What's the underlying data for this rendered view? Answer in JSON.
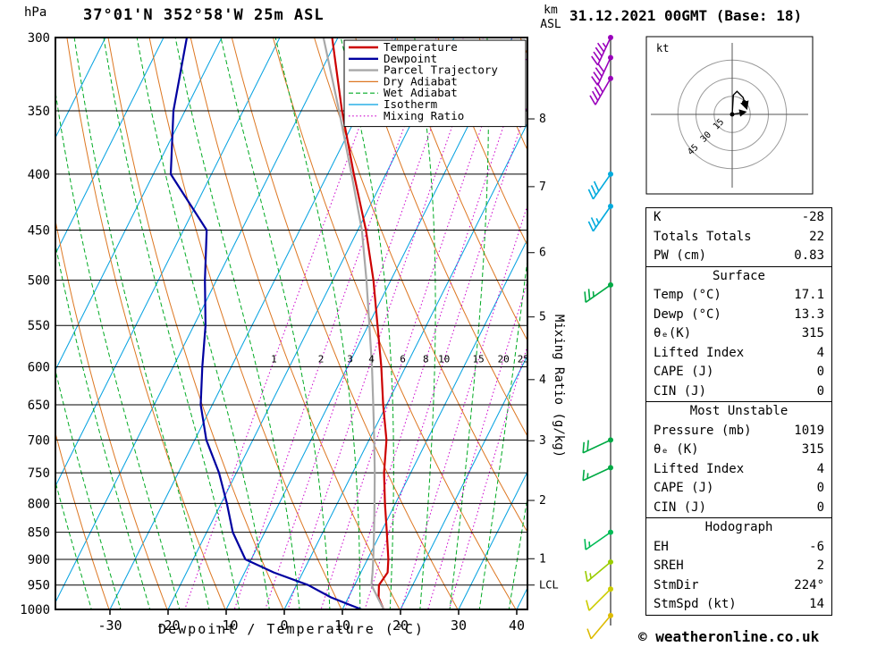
{
  "header": {
    "pressure_unit": "hPa",
    "station_title": "37°01'N 352°58'W 25m ASL",
    "alt_unit_km": "km",
    "alt_unit_asl": "ASL",
    "date_title": "31.12.2021 00GMT (Base: 18)"
  },
  "axes": {
    "temp_label": "Dewpoint / Temperature (°C)",
    "mixing_axis_label": "Mixing Ratio (g/kg)",
    "lcl_label": "LCL"
  },
  "legend": [
    {
      "label": "Temperature",
      "color": "#cc0000",
      "width": 2.4,
      "dash": null
    },
    {
      "label": "Dewpoint",
      "color": "#0000a0",
      "width": 2.4,
      "dash": null
    },
    {
      "label": "Parcel Trajectory",
      "color": "#a8a8a8",
      "width": 2.4,
      "dash": null
    },
    {
      "label": "Dry Adiabat",
      "color": "#dd7722",
      "width": 1.2,
      "dash": null
    },
    {
      "label": "Wet Adiabat",
      "color": "#00aa22",
      "width": 1.2,
      "dash": "5,3"
    },
    {
      "label": "Isotherm",
      "color": "#00a0e0",
      "width": 1.2,
      "dash": null
    },
    {
      "label": "Mixing Ratio",
      "color": "#cc00cc",
      "width": 1.2,
      "dash": "1.5,2.7"
    }
  ],
  "chart_data": {
    "type": "line",
    "title": "37°01'N 352°58'W 25m ASL",
    "xlabel": "Dewpoint / Temperature (°C)",
    "ylabel": "hPa",
    "y_scale": "log",
    "skew_t": true,
    "x_ticks": [
      -30,
      -20,
      -10,
      0,
      10,
      20,
      30,
      40
    ],
    "y_ticks": [
      300,
      350,
      400,
      450,
      500,
      550,
      600,
      650,
      700,
      750,
      800,
      850,
      900,
      950,
      1000
    ],
    "km_ticks": [
      1,
      2,
      3,
      4,
      5,
      6,
      7,
      8
    ],
    "lcl_pressure_hpa": 950,
    "mixing_ratio_gkg": [
      1,
      2,
      3,
      4,
      6,
      8,
      10,
      15,
      20,
      25
    ],
    "series": [
      {
        "name": "Temperature",
        "color": "#cc0000",
        "width": 2.2,
        "points_p_t": [
          [
            1000,
            17.1
          ],
          [
            975,
            15.2
          ],
          [
            950,
            14.2
          ],
          [
            925,
            14.6
          ],
          [
            900,
            13.6
          ],
          [
            850,
            11.0
          ],
          [
            800,
            8.2
          ],
          [
            750,
            5.4
          ],
          [
            700,
            3.0
          ],
          [
            650,
            -0.6
          ],
          [
            600,
            -4.2
          ],
          [
            550,
            -8.4
          ],
          [
            500,
            -13.0
          ],
          [
            450,
            -18.6
          ],
          [
            400,
            -25.5
          ],
          [
            350,
            -33.0
          ],
          [
            300,
            -41.0
          ]
        ]
      },
      {
        "name": "Dewpoint",
        "color": "#0000a0",
        "width": 2.2,
        "points_p_t": [
          [
            1000,
            13.3
          ],
          [
            975,
            7.0
          ],
          [
            950,
            2.0
          ],
          [
            925,
            -5.0
          ],
          [
            900,
            -11.0
          ],
          [
            850,
            -15.5
          ],
          [
            800,
            -19.0
          ],
          [
            750,
            -23.0
          ],
          [
            700,
            -28.0
          ],
          [
            650,
            -32.0
          ],
          [
            600,
            -35.0
          ],
          [
            550,
            -38.0
          ],
          [
            500,
            -42.0
          ],
          [
            450,
            -46.0
          ],
          [
            400,
            -57.0
          ],
          [
            350,
            -62.0
          ],
          [
            300,
            -66.0
          ]
        ]
      },
      {
        "name": "Parcel Trajectory",
        "color": "#a8a8a8",
        "width": 2.2,
        "points_p_t": [
          [
            1000,
            17.1
          ],
          [
            950,
            12.9
          ],
          [
            925,
            12.0
          ],
          [
            900,
            11.0
          ],
          [
            850,
            8.8
          ],
          [
            800,
            6.4
          ],
          [
            750,
            3.8
          ],
          [
            700,
            0.9
          ],
          [
            650,
            -2.3
          ],
          [
            600,
            -5.8
          ],
          [
            550,
            -9.8
          ],
          [
            500,
            -14.2
          ],
          [
            450,
            -19.3
          ],
          [
            400,
            -25.9
          ],
          [
            350,
            -33.5
          ],
          [
            300,
            -42.5
          ]
        ]
      }
    ],
    "wind_barbs": [
      {
        "p": 300,
        "speed_kt": 45,
        "dir_deg": 205,
        "color": "#9900bb"
      },
      {
        "p": 313,
        "speed_kt": 40,
        "dir_deg": 205,
        "color": "#9900bb"
      },
      {
        "p": 327,
        "speed_kt": 40,
        "dir_deg": 210,
        "color": "#9900bb"
      },
      {
        "p": 400,
        "speed_kt": 30,
        "dir_deg": 215,
        "color": "#00aadd"
      },
      {
        "p": 428,
        "speed_kt": 25,
        "dir_deg": 215,
        "color": "#00aadd"
      },
      {
        "p": 505,
        "speed_kt": 25,
        "dir_deg": 235,
        "color": "#00aa44"
      },
      {
        "p": 700,
        "speed_kt": 20,
        "dir_deg": 245,
        "color": "#00aa44"
      },
      {
        "p": 742,
        "speed_kt": 15,
        "dir_deg": 245,
        "color": "#00aa44"
      },
      {
        "p": 850,
        "speed_kt": 15,
        "dir_deg": 235,
        "color": "#00bb55"
      },
      {
        "p": 905,
        "speed_kt": 15,
        "dir_deg": 230,
        "color": "#99cc00"
      },
      {
        "p": 958,
        "speed_kt": 10,
        "dir_deg": 225,
        "color": "#cccc00"
      },
      {
        "p": 1013,
        "speed_kt": 8,
        "dir_deg": 220,
        "color": "#ddbb00"
      }
    ],
    "hodograph": {
      "unit": "kt",
      "rings_kt": [
        15,
        30,
        45
      ],
      "trace_uv_kt": [
        [
          0,
          0
        ],
        [
          1,
          16
        ],
        [
          4,
          19
        ],
        [
          9,
          14
        ],
        [
          12,
          5
        ]
      ],
      "storm_vector_uv_kt": [
        [
          0,
          0
        ],
        [
          11,
          2
        ]
      ],
      "dots_uv_kt": [
        [
          0,
          0
        ],
        [
          10,
          10
        ]
      ]
    }
  },
  "panels": [
    {
      "title": null,
      "rows": [
        [
          "K",
          "-28"
        ],
        [
          "Totals Totals",
          "22"
        ],
        [
          "PW (cm)",
          "0.83"
        ]
      ]
    },
    {
      "title": "Surface",
      "rows": [
        [
          "Temp (°C)",
          "17.1"
        ],
        [
          "Dewp (°C)",
          "13.3"
        ],
        [
          "θₑ(K)",
          "315"
        ],
        [
          "Lifted Index",
          "4"
        ],
        [
          "CAPE (J)",
          "0"
        ],
        [
          "CIN (J)",
          "0"
        ]
      ]
    },
    {
      "title": "Most Unstable",
      "rows": [
        [
          "Pressure (mb)",
          "1019"
        ],
        [
          "θₑ (K)",
          "315"
        ],
        [
          "Lifted Index",
          "4"
        ],
        [
          "CAPE (J)",
          "0"
        ],
        [
          "CIN (J)",
          "0"
        ]
      ]
    },
    {
      "title": "Hodograph",
      "rows": [
        [
          "EH",
          "-6"
        ],
        [
          "SREH",
          "2"
        ],
        [
          "StmDir",
          "224°"
        ],
        [
          "StmSpd (kt)",
          "14"
        ]
      ]
    }
  ],
  "footer": {
    "copyright": "© weatheronline.co.uk"
  }
}
